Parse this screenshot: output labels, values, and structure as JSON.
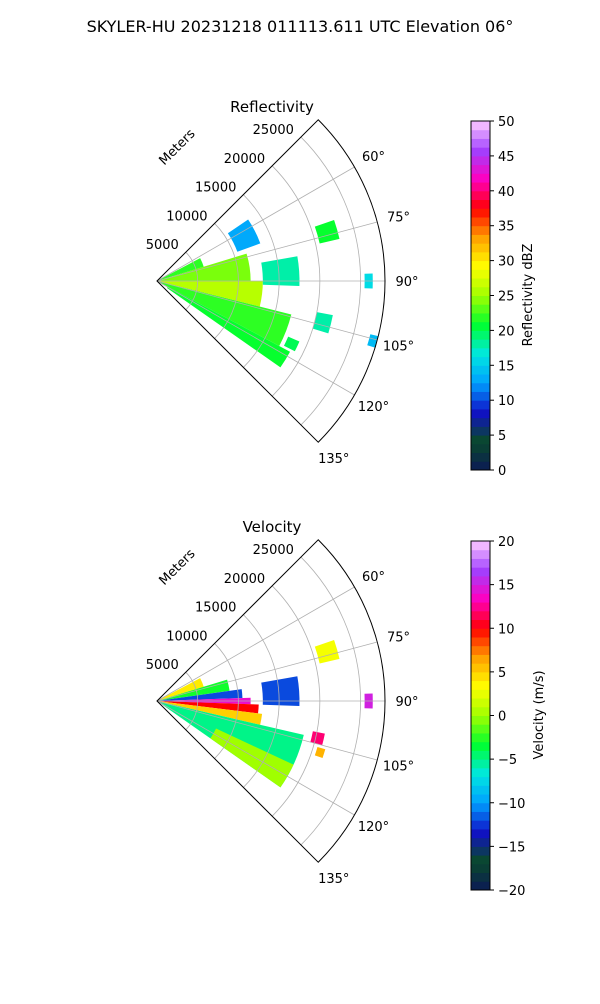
{
  "figure": {
    "suptitle": "SKYLER-HU  20231218  011113.611 UTC Elevation 06°"
  },
  "chart_data": [
    {
      "type": "heatmap",
      "projection": "polar-sector",
      "title": "Reflectivity",
      "range_label": "Meters",
      "theta_range_deg": [
        45,
        135
      ],
      "r_max": 28000,
      "r_ticks": [
        5000,
        10000,
        15000,
        20000,
        25000
      ],
      "theta_ticks": [
        {
          "deg": 60,
          "label": "60°"
        },
        {
          "deg": 75,
          "label": "75°"
        },
        {
          "deg": 90,
          "label": "90°"
        },
        {
          "deg": 105,
          "label": "105°"
        },
        {
          "deg": 120,
          "label": "120°"
        },
        {
          "deg": 135,
          "label": "135°"
        }
      ],
      "grid": true,
      "colorbar": {
        "label": "Reflectivity dBZ",
        "vmin": 0,
        "vmax": 50,
        "ticks": [
          0,
          5,
          10,
          15,
          20,
          25,
          30,
          35,
          40,
          45,
          50
        ],
        "tick_labels": [
          "0",
          "5",
          "10",
          "15",
          "20",
          "25",
          "30",
          "35",
          "40",
          "45",
          "50"
        ]
      },
      "regions": [
        {
          "theta": [
            62,
            73
          ],
          "r": [
            0,
            6000
          ],
          "value": 22
        },
        {
          "theta": [
            73,
            90
          ],
          "r": [
            0,
            11500
          ],
          "value": 24
        },
        {
          "theta": [
            90,
            104
          ],
          "r": [
            0,
            13000
          ],
          "value": 26
        },
        {
          "theta": [
            104,
            118
          ],
          "r": [
            0,
            17000
          ],
          "value": 22
        },
        {
          "theta": [
            118,
            125
          ],
          "r": [
            1500,
            18500
          ],
          "value": 21
        },
        {
          "theta": [
            80,
            92
          ],
          "r": [
            13000,
            17500
          ],
          "value": 18
        },
        {
          "theta": [
            71,
            77
          ],
          "r": [
            20500,
            23000
          ],
          "value": 21
        },
        {
          "theta": [
            56,
            70
          ],
          "r": [
            10500,
            13500
          ],
          "value": 13
        },
        {
          "theta": [
            101,
            107
          ],
          "r": [
            20000,
            22000
          ],
          "value": 18
        },
        {
          "theta": [
            88,
            92
          ],
          "r": [
            25500,
            26500
          ],
          "value": 16
        },
        {
          "theta": [
            113,
            117
          ],
          "r": [
            17500,
            19000
          ],
          "value": 20
        },
        {
          "theta": [
            104,
            107
          ],
          "r": [
            27000,
            28000
          ],
          "value": 14
        }
      ]
    },
    {
      "type": "heatmap",
      "projection": "polar-sector",
      "title": "Velocity",
      "range_label": "Meters",
      "theta_range_deg": [
        45,
        135
      ],
      "r_max": 28000,
      "r_ticks": [
        5000,
        10000,
        15000,
        20000,
        25000
      ],
      "theta_ticks": [
        {
          "deg": 60,
          "label": "60°"
        },
        {
          "deg": 75,
          "label": "75°"
        },
        {
          "deg": 90,
          "label": "90°"
        },
        {
          "deg": 105,
          "label": "105°"
        },
        {
          "deg": 120,
          "label": "120°"
        },
        {
          "deg": 135,
          "label": "135°"
        }
      ],
      "grid": true,
      "colorbar": {
        "label": "Velocity (m/s)",
        "vmin": -20,
        "vmax": 20,
        "ticks": [
          -20,
          -15,
          -10,
          -5,
          0,
          5,
          10,
          15,
          20
        ],
        "tick_labels": [
          "−20",
          "−15",
          "−10",
          "−5",
          "0",
          "5",
          "10",
          "15",
          "20"
        ]
      },
      "regions": [
        {
          "theta": [
            62,
            73
          ],
          "r": [
            0,
            6000
          ],
          "value": 4
        },
        {
          "theta": [
            73,
            82
          ],
          "r": [
            0,
            9000
          ],
          "value": -3
        },
        {
          "theta": [
            82,
            88
          ],
          "r": [
            0,
            10500
          ],
          "value": -12
        },
        {
          "theta": [
            88,
            92
          ],
          "r": [
            0,
            11500
          ],
          "value": 14
        },
        {
          "theta": [
            92,
            97
          ],
          "r": [
            0,
            12500
          ],
          "value": 10
        },
        {
          "theta": [
            97,
            103
          ],
          "r": [
            0,
            13000
          ],
          "value": 5
        },
        {
          "theta": [
            103,
            125
          ],
          "r": [
            0,
            18500
          ],
          "value": -5
        },
        {
          "theta": [
            115,
            125
          ],
          "r": [
            8000,
            18500
          ],
          "value": 0
        },
        {
          "theta": [
            80,
            92
          ],
          "r": [
            13000,
            17500
          ],
          "value": -12
        },
        {
          "theta": [
            71,
            77
          ],
          "r": [
            20500,
            23000
          ],
          "value": 3
        },
        {
          "theta": [
            101,
            105
          ],
          "r": [
            19500,
            21000
          ],
          "value": 12
        },
        {
          "theta": [
            106,
            109
          ],
          "r": [
            20500,
            21500
          ],
          "value": 6
        },
        {
          "theta": [
            88,
            92
          ],
          "r": [
            25500,
            26500
          ],
          "value": 15
        }
      ]
    }
  ],
  "colormap_stops": [
    "#0b1a55",
    "#0a4a2a",
    "#1010c8",
    "#00a0ff",
    "#00e8e0",
    "#00ff30",
    "#a0ff00",
    "#ffff00",
    "#ffa000",
    "#ff0000",
    "#ff00c0",
    "#a040ff",
    "#ffccff"
  ]
}
